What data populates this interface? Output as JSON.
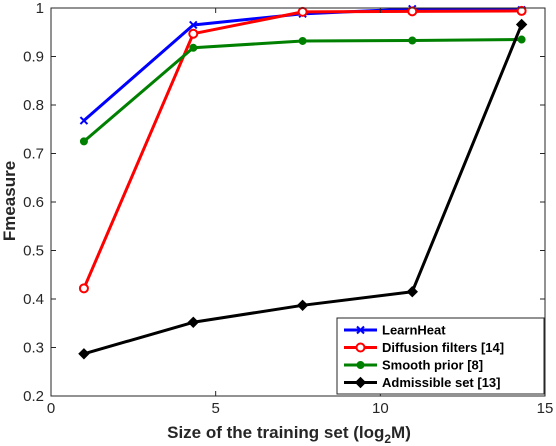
{
  "chart_data": {
    "type": "line",
    "xlabel": "Size of the training set (log",
    "xlabel_sub": "2",
    "xlabel_tail": "M)",
    "ylabel": "Fmeasure",
    "xlim": [
      0,
      15
    ],
    "ylim": [
      0.2,
      1
    ],
    "xticks": [
      0,
      5,
      10,
      15
    ],
    "yticks": [
      0.2,
      0.3,
      0.4,
      0.5,
      0.6,
      0.7,
      0.8,
      0.9,
      1
    ],
    "ytick_labels": [
      "0.2",
      "0.3",
      "0.4",
      "0.5",
      "0.6",
      "0.7",
      "0.8",
      "0.9",
      "1"
    ],
    "grid": false,
    "legend_position": "bottom-right",
    "series": [
      {
        "name": "LearnHeat",
        "color": "#0000ff",
        "marker": "x",
        "x": [
          1,
          4.32,
          7.64,
          10.97,
          14.29
        ],
        "y": [
          0.768,
          0.965,
          0.988,
          0.998,
          0.996
        ]
      },
      {
        "name": "Diffusion filters [14]",
        "color": "#ff0000",
        "marker": "circle",
        "x": [
          1,
          4.32,
          7.64,
          10.97,
          14.29
        ],
        "y": [
          0.422,
          0.947,
          0.992,
          0.993,
          0.994
        ]
      },
      {
        "name": "Smooth prior [8]",
        "color": "#008000",
        "marker": "dot",
        "x": [
          1,
          4.32,
          7.64,
          10.97,
          14.29
        ],
        "y": [
          0.725,
          0.918,
          0.932,
          0.933,
          0.935
        ]
      },
      {
        "name": "Admissible set [13]",
        "color": "#000000",
        "marker": "diamond",
        "x": [
          1,
          4.32,
          7.64,
          10.97,
          14.29
        ],
        "y": [
          0.287,
          0.352,
          0.387,
          0.415,
          0.966
        ]
      }
    ]
  }
}
